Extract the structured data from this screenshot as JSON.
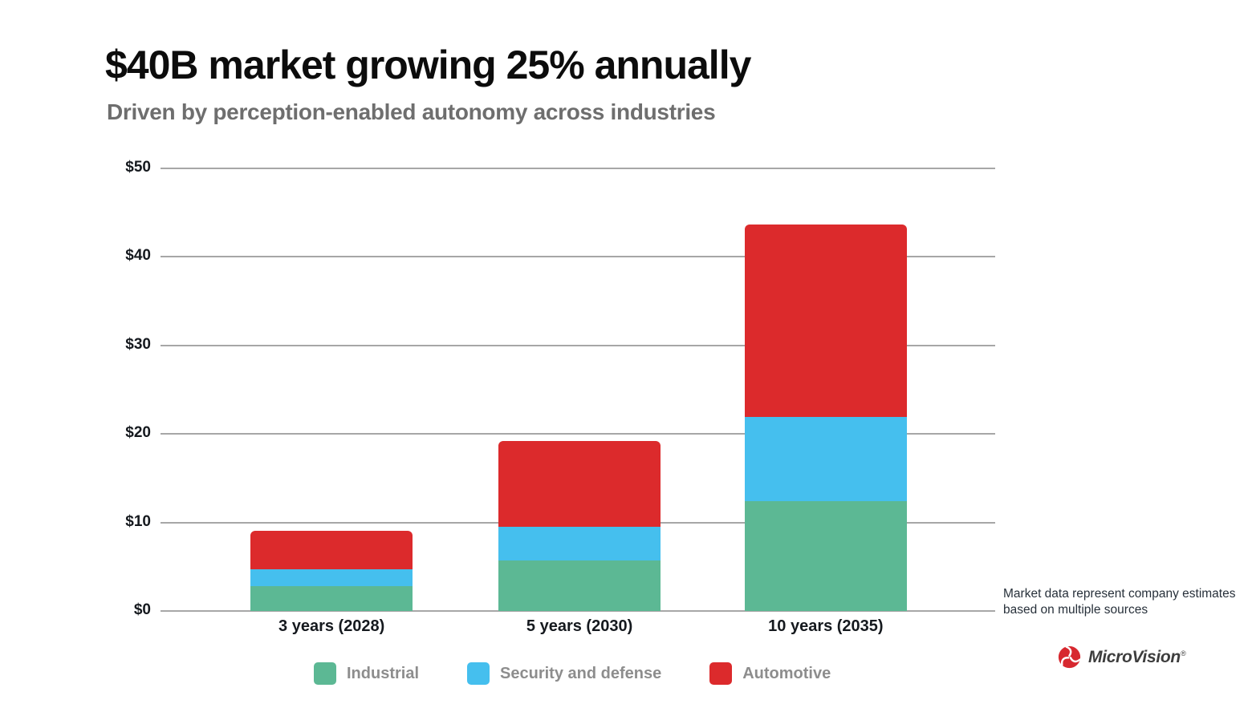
{
  "header": {
    "title": "$40B market growing 25% annually",
    "subtitle": "Driven by perception-enabled autonomy across industries"
  },
  "footnote": {
    "line1": "Market data represent company estimates",
    "line2": "based on multiple sources"
  },
  "brand": {
    "name": "MicroVision",
    "registered": "®",
    "logo_color": "#d7282f"
  },
  "colors": {
    "industrial": "#5cb894",
    "security_and_defense": "#45bfee",
    "automotive": "#dc2a2c",
    "gridline": "#a7a7a7",
    "title_text": "#0c0c0c",
    "subtitle_text": "#6e6e6e",
    "legend_text": "#8d8d8d"
  },
  "chart_data": {
    "type": "bar",
    "stacked": true,
    "title": "$40B market growing 25% annually",
    "categories": [
      "3 years (2028)",
      "5 years (2030)",
      "10 years (2035)"
    ],
    "series": [
      {
        "name": "Industrial",
        "color": "#5cb894",
        "values": [
          2.8,
          5.7,
          12.4
        ]
      },
      {
        "name": "Security and defense",
        "color": "#45bfee",
        "values": [
          1.9,
          3.8,
          9.5
        ]
      },
      {
        "name": "Automotive",
        "color": "#dc2a2c",
        "values": [
          4.4,
          9.7,
          21.8
        ]
      }
    ],
    "xlabel": "",
    "ylabel": "",
    "ylim": [
      0,
      50
    ],
    "yticks": [
      {
        "value": 0,
        "label": "$0"
      },
      {
        "value": 10,
        "label": "$10"
      },
      {
        "value": 20,
        "label": "$20"
      },
      {
        "value": 30,
        "label": "$30"
      },
      {
        "value": 40,
        "label": "$40"
      },
      {
        "value": 50,
        "label": "$50"
      }
    ],
    "grid": true,
    "legend_position": "bottom"
  }
}
